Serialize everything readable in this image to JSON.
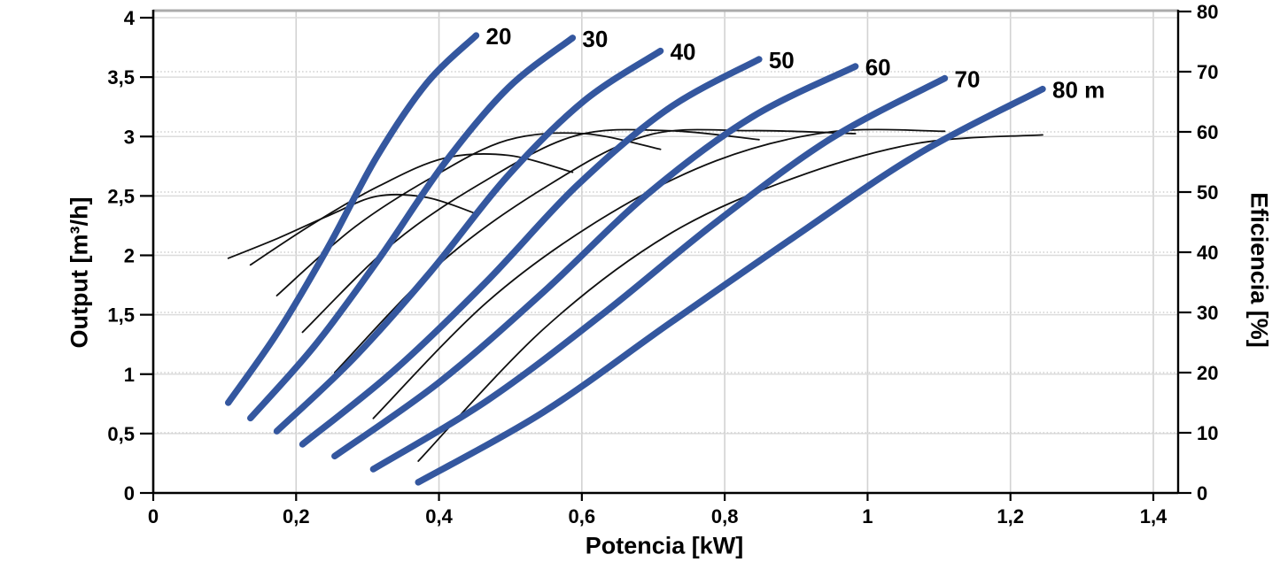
{
  "chart_data": {
    "type": "line",
    "title": "",
    "xlabel": "Potencia [kW]",
    "ylabel_left": "Output [m³/h]",
    "ylabel_right": "Eficiencia [%]",
    "x_axis": {
      "range": [
        0,
        1.435
      ],
      "ticks": [
        {
          "v": 0,
          "label": "0"
        },
        {
          "v": 0.2,
          "label": "0,2"
        },
        {
          "v": 0.4,
          "label": "0,4"
        },
        {
          "v": 0.6,
          "label": "0,6"
        },
        {
          "v": 0.8,
          "label": "0,8"
        },
        {
          "v": 1,
          "label": "1"
        },
        {
          "v": 1.2,
          "label": "1,2"
        },
        {
          "v": 1.4,
          "label": "1,4"
        }
      ]
    },
    "y_left_axis": {
      "range": [
        0,
        4
      ],
      "ticks": [
        {
          "v": 0,
          "label": "0"
        },
        {
          "v": 0.5,
          "label": "0,5"
        },
        {
          "v": 1,
          "label": "1"
        },
        {
          "v": 1.5,
          "label": "1,5"
        },
        {
          "v": 2,
          "label": "2"
        },
        {
          "v": 2.5,
          "label": "2,5"
        },
        {
          "v": 3,
          "label": "3"
        },
        {
          "v": 3.5,
          "label": "3,5"
        },
        {
          "v": 4,
          "label": "4"
        }
      ]
    },
    "y_right_axis": {
      "range": [
        0,
        80
      ],
      "ticks": [
        {
          "v": 0,
          "label": "0"
        },
        {
          "v": 10,
          "label": "10"
        },
        {
          "v": 20,
          "label": "20"
        },
        {
          "v": 30,
          "label": "30"
        },
        {
          "v": 40,
          "label": "40"
        },
        {
          "v": 50,
          "label": "50"
        },
        {
          "v": 60,
          "label": "60"
        },
        {
          "v": 70,
          "label": "70"
        },
        {
          "v": 80,
          "label": "80"
        }
      ]
    },
    "head_curves": [
      {
        "head_m": 20,
        "label": "20",
        "axis": "left",
        "points": [
          [
            0.105,
            0.76
          ],
          [
            0.174,
            1.35
          ],
          [
            0.244,
            2.06
          ],
          [
            0.313,
            2.83
          ],
          [
            0.383,
            3.45
          ],
          [
            0.452,
            3.85
          ]
        ]
      },
      {
        "head_m": 30,
        "label": "30",
        "axis": "left",
        "points": [
          [
            0.136,
            0.63
          ],
          [
            0.226,
            1.24
          ],
          [
            0.316,
            1.97
          ],
          [
            0.407,
            2.77
          ],
          [
            0.497,
            3.41
          ],
          [
            0.587,
            3.83
          ]
        ]
      },
      {
        "head_m": 40,
        "label": "40",
        "axis": "left",
        "points": [
          [
            0.173,
            0.52
          ],
          [
            0.28,
            1.13
          ],
          [
            0.388,
            1.86
          ],
          [
            0.495,
            2.66
          ],
          [
            0.603,
            3.3
          ],
          [
            0.71,
            3.72
          ]
        ]
      },
      {
        "head_m": 50,
        "label": "50",
        "axis": "left",
        "points": [
          [
            0.209,
            0.41
          ],
          [
            0.337,
            1.03
          ],
          [
            0.465,
            1.77
          ],
          [
            0.592,
            2.58
          ],
          [
            0.72,
            3.23
          ],
          [
            0.848,
            3.65
          ]
        ]
      },
      {
        "head_m": 60,
        "label": "60",
        "axis": "left",
        "points": [
          [
            0.254,
            0.31
          ],
          [
            0.4,
            0.93
          ],
          [
            0.546,
            1.69
          ],
          [
            0.691,
            2.51
          ],
          [
            0.837,
            3.16
          ],
          [
            0.983,
            3.59
          ]
        ]
      },
      {
        "head_m": 70,
        "label": "70",
        "axis": "left",
        "points": [
          [
            0.308,
            0.2
          ],
          [
            0.468,
            0.78
          ],
          [
            0.628,
            1.5
          ],
          [
            0.788,
            2.28
          ],
          [
            0.948,
            2.98
          ],
          [
            1.108,
            3.49
          ]
        ]
      },
      {
        "head_m": 80,
        "label": "80 m",
        "axis": "left",
        "points": [
          [
            0.371,
            0.09
          ],
          [
            0.546,
            0.68
          ],
          [
            0.721,
            1.42
          ],
          [
            0.896,
            2.15
          ],
          [
            1.07,
            2.85
          ],
          [
            1.245,
            3.4
          ]
        ]
      }
    ],
    "efficiency_curves": [
      {
        "head_m": 20,
        "axis": "right",
        "points": [
          [
            0.105,
            39.0
          ],
          [
            0.174,
            42.3
          ],
          [
            0.244,
            46.0
          ],
          [
            0.313,
            49.3
          ],
          [
            0.383,
            49.1
          ],
          [
            0.452,
            46.4
          ]
        ]
      },
      {
        "head_m": 30,
        "axis": "right",
        "points": [
          [
            0.136,
            37.9
          ],
          [
            0.226,
            44.9
          ],
          [
            0.316,
            51.0
          ],
          [
            0.407,
            55.6
          ],
          [
            0.497,
            56.1
          ],
          [
            0.587,
            53.3
          ]
        ]
      },
      {
        "head_m": 40,
        "axis": "right",
        "points": [
          [
            0.173,
            32.8
          ],
          [
            0.28,
            44.0
          ],
          [
            0.388,
            52.3
          ],
          [
            0.495,
            58.6
          ],
          [
            0.603,
            59.7
          ],
          [
            0.71,
            57.1
          ]
        ]
      },
      {
        "head_m": 50,
        "axis": "right",
        "points": [
          [
            0.209,
            26.7
          ],
          [
            0.337,
            41.6
          ],
          [
            0.465,
            51.9
          ],
          [
            0.592,
            59.4
          ],
          [
            0.72,
            60.2
          ],
          [
            0.848,
            58.7
          ]
        ]
      },
      {
        "head_m": 60,
        "axis": "right",
        "points": [
          [
            0.254,
            20.0
          ],
          [
            0.4,
            38.0
          ],
          [
            0.546,
            50.6
          ],
          [
            0.691,
            59.4
          ],
          [
            0.837,
            60.2
          ],
          [
            0.983,
            59.7
          ]
        ]
      },
      {
        "head_m": 70,
        "axis": "right",
        "points": [
          [
            0.308,
            12.4
          ],
          [
            0.468,
            31.8
          ],
          [
            0.628,
            45.6
          ],
          [
            0.788,
            55.2
          ],
          [
            0.948,
            60.0
          ],
          [
            1.108,
            60.1
          ]
        ]
      },
      {
        "head_m": 80,
        "axis": "right",
        "points": [
          [
            0.371,
            5.3
          ],
          [
            0.546,
            27.2
          ],
          [
            0.721,
            42.9
          ],
          [
            0.896,
            52.3
          ],
          [
            1.07,
            58.1
          ],
          [
            1.245,
            59.5
          ]
        ]
      }
    ],
    "colors": {
      "head_curve": "#34579f",
      "efficiency_curve": "#101010",
      "grid_vertical": "#d2d2d2",
      "grid_horizontal": "#dcdcdc",
      "grid_dotted": "#cfcfcf",
      "axis": "#000000",
      "top_border": "#ababab"
    },
    "legend_position": "none",
    "grid": true
  }
}
